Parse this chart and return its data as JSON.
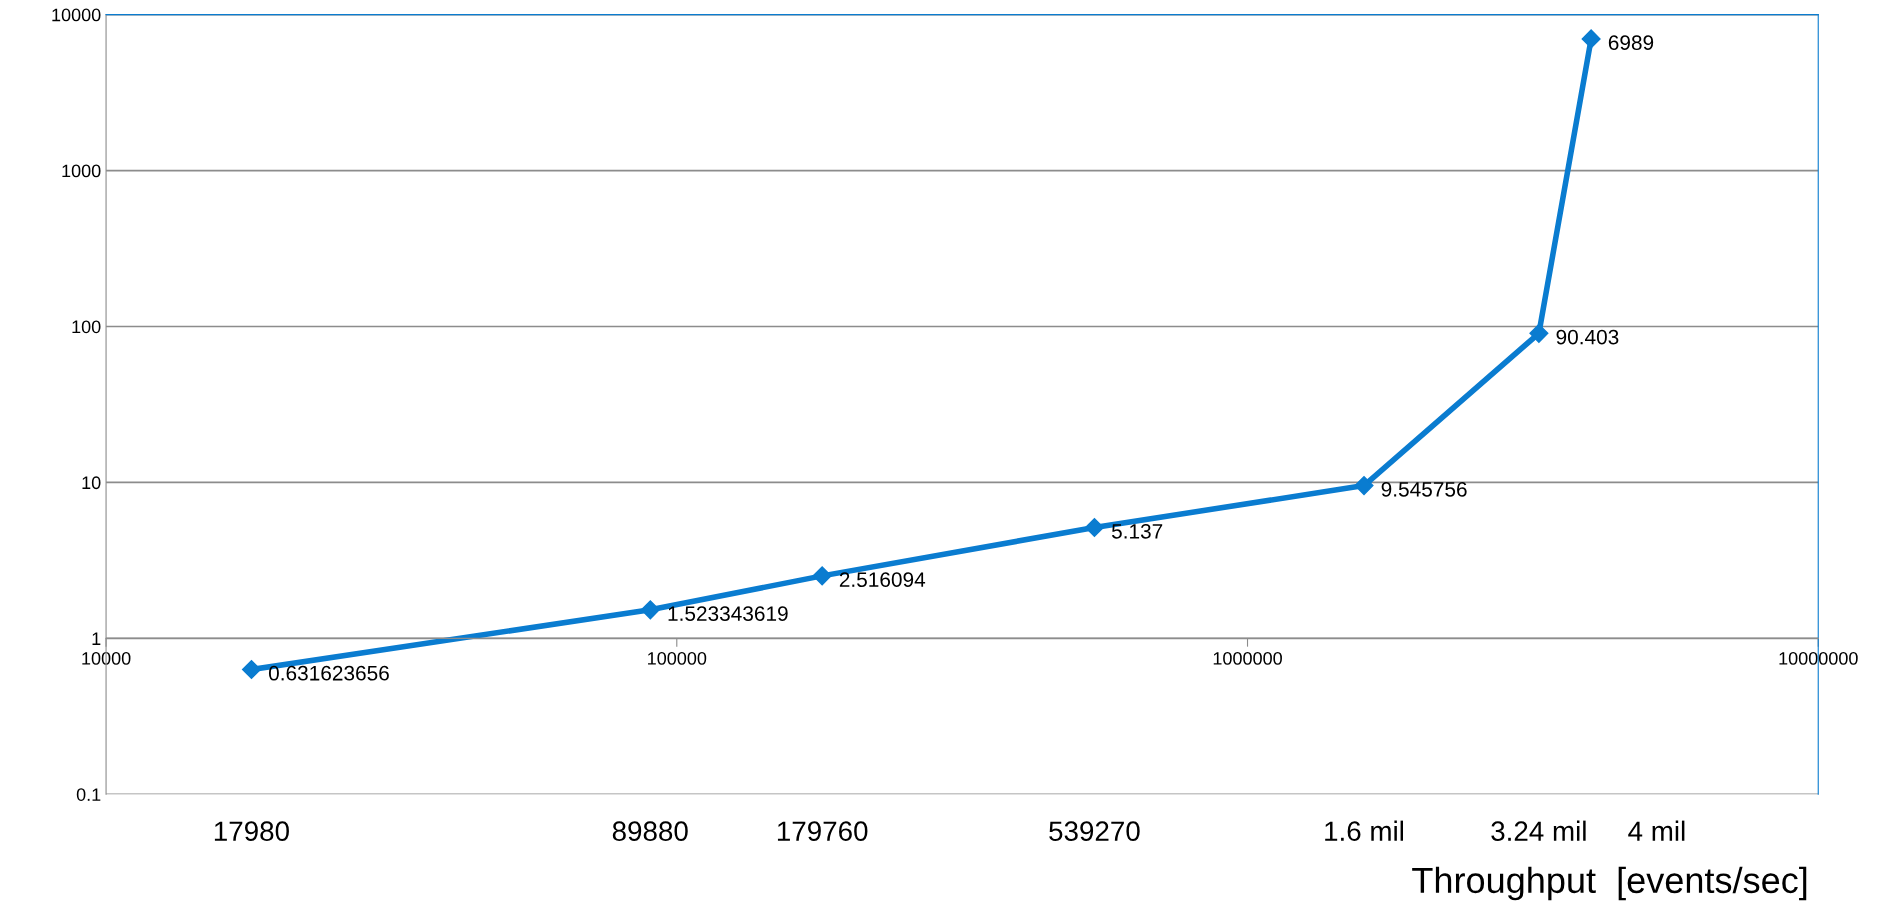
{
  "chart_data": {
    "type": "line",
    "x": [
      17980,
      89880,
      179760,
      539270,
      1600000,
      3240000,
      4000000
    ],
    "series": [
      {
        "color": "#0a7cd0",
        "values": [
          0.631623656,
          1.523343619,
          2.516094,
          5.137,
          9.545756,
          90.403,
          6989
        ]
      }
    ],
    "data_labels": true,
    "log": "xy",
    "xlim": [
      10000,
      10000000
    ],
    "ylim": [
      0.1,
      10000
    ],
    "xticks": [
      10000,
      100000,
      1000000,
      10000000
    ],
    "yticks": [
      0.1,
      1,
      10,
      100,
      1000,
      10000
    ],
    "grid": "y",
    "marker": "diamond",
    "line_style": "solid",
    "annotations": [
      "17980",
      "89880",
      "179760",
      "539270",
      "1.6 mil",
      "3.24 mil",
      "4 mil",
      "Throughput  [events/sec]"
    ]
  }
}
